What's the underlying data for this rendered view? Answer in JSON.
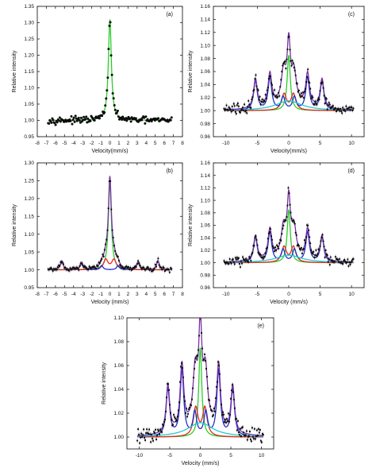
{
  "figure": {
    "background": "#ffffff"
  },
  "chart_data": [
    {
      "id": "a",
      "type": "scatter",
      "panel_label": "(a)",
      "xlabel": "Velocity(mm/s)",
      "ylabel": "Relative intensity",
      "xlim": [
        -8,
        8
      ],
      "ylim": [
        0.95,
        1.35
      ],
      "xticks": [
        -8,
        -7,
        -6,
        -5,
        -4,
        -3,
        -2,
        -1,
        0,
        1,
        2,
        3,
        4,
        5,
        6,
        7,
        8
      ],
      "yticks": [
        0.95,
        1.0,
        1.05,
        1.1,
        1.15,
        1.2,
        1.25,
        1.3,
        1.35
      ],
      "ytick_decimals": 2,
      "data_range": [
        -6.8,
        6.8
      ],
      "baseline": 1.0,
      "noise": 0.008,
      "point_count": 150,
      "marker_color": "#0a0a0a",
      "fit_color": "#2dcc2d",
      "components": [
        {
          "name": "singlet",
          "color": "#2dcc2d",
          "lines": [
            {
              "pos": 0.0,
              "amp": 0.31,
              "hw": 0.2
            }
          ]
        }
      ],
      "show_components": false
    },
    {
      "id": "b",
      "type": "scatter",
      "panel_label": "(b)",
      "xlabel": "Velocity (mm/s)",
      "ylabel": "Relative intensity",
      "xlim": [
        -8,
        8
      ],
      "ylim": [
        0.95,
        1.3
      ],
      "xticks": [
        -8,
        -7,
        -6,
        -5,
        -4,
        -3,
        -2,
        -1,
        0,
        1,
        2,
        3,
        4,
        5,
        6,
        7,
        8
      ],
      "yticks": [
        0.95,
        1.0,
        1.05,
        1.1,
        1.15,
        1.2,
        1.25,
        1.3
      ],
      "ytick_decimals": 2,
      "data_range": [
        -6.8,
        6.8
      ],
      "baseline": 1.0,
      "noise": 0.005,
      "point_count": 130,
      "marker_color": "#0a0a0a",
      "fit_color": "#7a2fa8",
      "components": [
        {
          "name": "singlet",
          "color": "#2dcc2d",
          "lines": [
            {
              "pos": 0.0,
              "amp": 0.245,
              "hw": 0.2
            }
          ]
        },
        {
          "name": "doublet",
          "color": "#e8241c",
          "lines": [
            {
              "pos": -0.45,
              "amp": 0.028,
              "hw": 0.3
            },
            {
              "pos": 0.45,
              "amp": 0.028,
              "hw": 0.3
            }
          ]
        },
        {
          "name": "sextet",
          "color": "#1f2fc8",
          "lines": [
            {
              "pos": -5.3,
              "amp": 0.025,
              "hw": 0.18
            },
            {
              "pos": -3.1,
              "amp": 0.02,
              "hw": 0.18
            },
            {
              "pos": -0.9,
              "amp": 0.012,
              "hw": 0.18
            },
            {
              "pos": 0.9,
              "amp": 0.012,
              "hw": 0.18
            },
            {
              "pos": 3.1,
              "amp": 0.02,
              "hw": 0.18
            },
            {
              "pos": 5.3,
              "amp": 0.025,
              "hw": 0.18
            }
          ]
        }
      ],
      "show_components": true
    },
    {
      "id": "c",
      "type": "scatter",
      "panel_label": "(c)",
      "xlabel": "Velocity(mm/s)",
      "ylabel": "Relative intensity",
      "xlim": [
        -12,
        12
      ],
      "ylim": [
        0.96,
        1.16
      ],
      "xticks": [
        -10,
        -5,
        0,
        5,
        10
      ],
      "yticks": [
        0.96,
        0.98,
        1.0,
        1.02,
        1.04,
        1.06,
        1.08,
        1.1,
        1.12,
        1.14,
        1.16
      ],
      "ytick_decimals": 2,
      "data_range": [
        -10.3,
        10.3
      ],
      "baseline": 1.0,
      "noise": 0.007,
      "point_count": 160,
      "marker_color": "#0a0a0a",
      "fit_color": "#7a2fa8",
      "components": [
        {
          "name": "singlet",
          "color": "#2dcc2d",
          "lines": [
            {
              "pos": 0.0,
              "amp": 0.085,
              "hw": 0.3
            }
          ]
        },
        {
          "name": "doublet",
          "color": "#e8241c",
          "lines": [
            {
              "pos": -0.75,
              "amp": 0.025,
              "hw": 0.45
            },
            {
              "pos": 0.75,
              "amp": 0.025,
              "hw": 0.45
            }
          ]
        },
        {
          "name": "sextet",
          "color": "#1f2fc8",
          "lines": [
            {
              "pos": -5.3,
              "amp": 0.045,
              "hw": 0.35
            },
            {
              "pos": -3.0,
              "amp": 0.05,
              "hw": 0.35
            },
            {
              "pos": -0.9,
              "amp": 0.02,
              "hw": 0.35
            },
            {
              "pos": 0.9,
              "amp": 0.02,
              "hw": 0.35
            },
            {
              "pos": 3.0,
              "amp": 0.05,
              "hw": 0.35
            },
            {
              "pos": 5.3,
              "amp": 0.045,
              "hw": 0.35
            }
          ]
        },
        {
          "name": "broad",
          "color": "#22c8d8",
          "lines": [
            {
              "pos": 0.0,
              "amp": 0.015,
              "hw": 2.5
            }
          ]
        }
      ],
      "show_components": true
    },
    {
      "id": "d",
      "type": "scatter",
      "panel_label": "(d)",
      "xlabel": "Velocity (mm/s)",
      "ylabel": "Relative intensity",
      "xlim": [
        -12,
        12
      ],
      "ylim": [
        0.96,
        1.16
      ],
      "xticks": [
        -10,
        -5,
        0,
        5,
        10
      ],
      "yticks": [
        0.96,
        0.98,
        1.0,
        1.02,
        1.04,
        1.06,
        1.08,
        1.1,
        1.12,
        1.14,
        1.16
      ],
      "ytick_decimals": 2,
      "data_range": [
        -10.3,
        10.3
      ],
      "baseline": 1.0,
      "noise": 0.006,
      "point_count": 160,
      "marker_color": "#0a0a0a",
      "fit_color": "#7a2fa8",
      "components": [
        {
          "name": "singlet",
          "color": "#2dcc2d",
          "lines": [
            {
              "pos": 0.0,
              "amp": 0.085,
              "hw": 0.3
            }
          ]
        },
        {
          "name": "doublet",
          "color": "#e8241c",
          "lines": [
            {
              "pos": -0.75,
              "amp": 0.025,
              "hw": 0.45
            },
            {
              "pos": 0.75,
              "amp": 0.025,
              "hw": 0.45
            }
          ]
        },
        {
          "name": "sextet",
          "color": "#1f2fc8",
          "lines": [
            {
              "pos": -5.3,
              "amp": 0.04,
              "hw": 0.35
            },
            {
              "pos": -3.0,
              "amp": 0.048,
              "hw": 0.35
            },
            {
              "pos": -0.9,
              "amp": 0.02,
              "hw": 0.35
            },
            {
              "pos": 0.9,
              "amp": 0.02,
              "hw": 0.35
            },
            {
              "pos": 3.0,
              "amp": 0.048,
              "hw": 0.35
            },
            {
              "pos": 5.3,
              "amp": 0.04,
              "hw": 0.35
            }
          ]
        },
        {
          "name": "broad",
          "color": "#22c8d8",
          "lines": [
            {
              "pos": 0.0,
              "amp": 0.012,
              "hw": 2.5
            }
          ]
        }
      ],
      "show_components": true
    },
    {
      "id": "e",
      "type": "scatter",
      "panel_label": "(e)",
      "xlabel": "Velocity (mm/s)",
      "ylabel": "Relative intensity",
      "xlim": [
        -12,
        12
      ],
      "ylim": [
        0.99,
        1.1
      ],
      "xticks": [
        -10,
        -5,
        0,
        5,
        10
      ],
      "yticks": [
        1.0,
        1.02,
        1.04,
        1.06,
        1.08,
        1.1
      ],
      "ytick_decimals": 2,
      "data_range": [
        -10.3,
        10.3
      ],
      "baseline": 1.0,
      "noise": 0.005,
      "point_count": 160,
      "marker_color": "#0a0a0a",
      "fit_color": "#7a2fa8",
      "components": [
        {
          "name": "singlet",
          "color": "#2dcc2d",
          "lines": [
            {
              "pos": 0.0,
              "amp": 0.075,
              "hw": 0.3
            }
          ]
        },
        {
          "name": "doublet",
          "color": "#e8241c",
          "lines": [
            {
              "pos": -0.75,
              "amp": 0.024,
              "hw": 0.45
            },
            {
              "pos": 0.75,
              "amp": 0.024,
              "hw": 0.45
            }
          ]
        },
        {
          "name": "sextet",
          "color": "#1f2fc8",
          "lines": [
            {
              "pos": -5.3,
              "amp": 0.04,
              "hw": 0.35
            },
            {
              "pos": -3.0,
              "amp": 0.055,
              "hw": 0.35
            },
            {
              "pos": -0.9,
              "amp": 0.02,
              "hw": 0.35
            },
            {
              "pos": 0.9,
              "amp": 0.02,
              "hw": 0.35
            },
            {
              "pos": 3.0,
              "amp": 0.055,
              "hw": 0.35
            },
            {
              "pos": 5.3,
              "amp": 0.04,
              "hw": 0.35
            }
          ]
        },
        {
          "name": "broad",
          "color": "#22c8d8",
          "lines": [
            {
              "pos": 0.0,
              "amp": 0.012,
              "hw": 2.5
            }
          ]
        }
      ],
      "show_components": true
    }
  ]
}
